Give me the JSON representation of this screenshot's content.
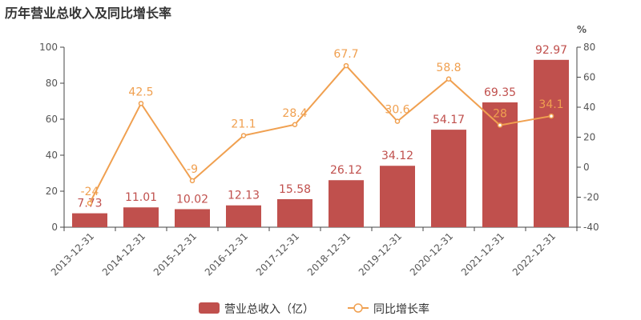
{
  "chart_data": {
    "type": "bar",
    "title": "历年营业总收入及同比增长率",
    "categories": [
      "2013-12-31",
      "2014-12-31",
      "2015-12-31",
      "2016-12-31",
      "2017-12-31",
      "2018-12-31",
      "2019-12-31",
      "2020-12-31",
      "2021-12-31",
      "2022-12-31"
    ],
    "series": [
      {
        "name": "营业总收入（亿）",
        "type": "bar",
        "axis": "left",
        "color": "#c0504d",
        "values": [
          7.73,
          11.01,
          10.02,
          12.13,
          15.58,
          26.12,
          34.12,
          54.17,
          69.35,
          92.97
        ]
      },
      {
        "name": "同比增长率",
        "type": "line",
        "axis": "right",
        "color": "#f0a050",
        "values": [
          -24,
          42.5,
          -9,
          21.1,
          28.4,
          67.7,
          30.6,
          58.8,
          28,
          34.1
        ]
      }
    ],
    "y_left": {
      "min": 0,
      "max": 100,
      "ticks": [
        0,
        20,
        40,
        60,
        80,
        100
      ]
    },
    "y_right": {
      "min": -40,
      "max": 80,
      "ticks": [
        -40,
        -20,
        0,
        20,
        40,
        60,
        80
      ],
      "unit": "%"
    },
    "grid": false,
    "legend": "bottom-center"
  }
}
